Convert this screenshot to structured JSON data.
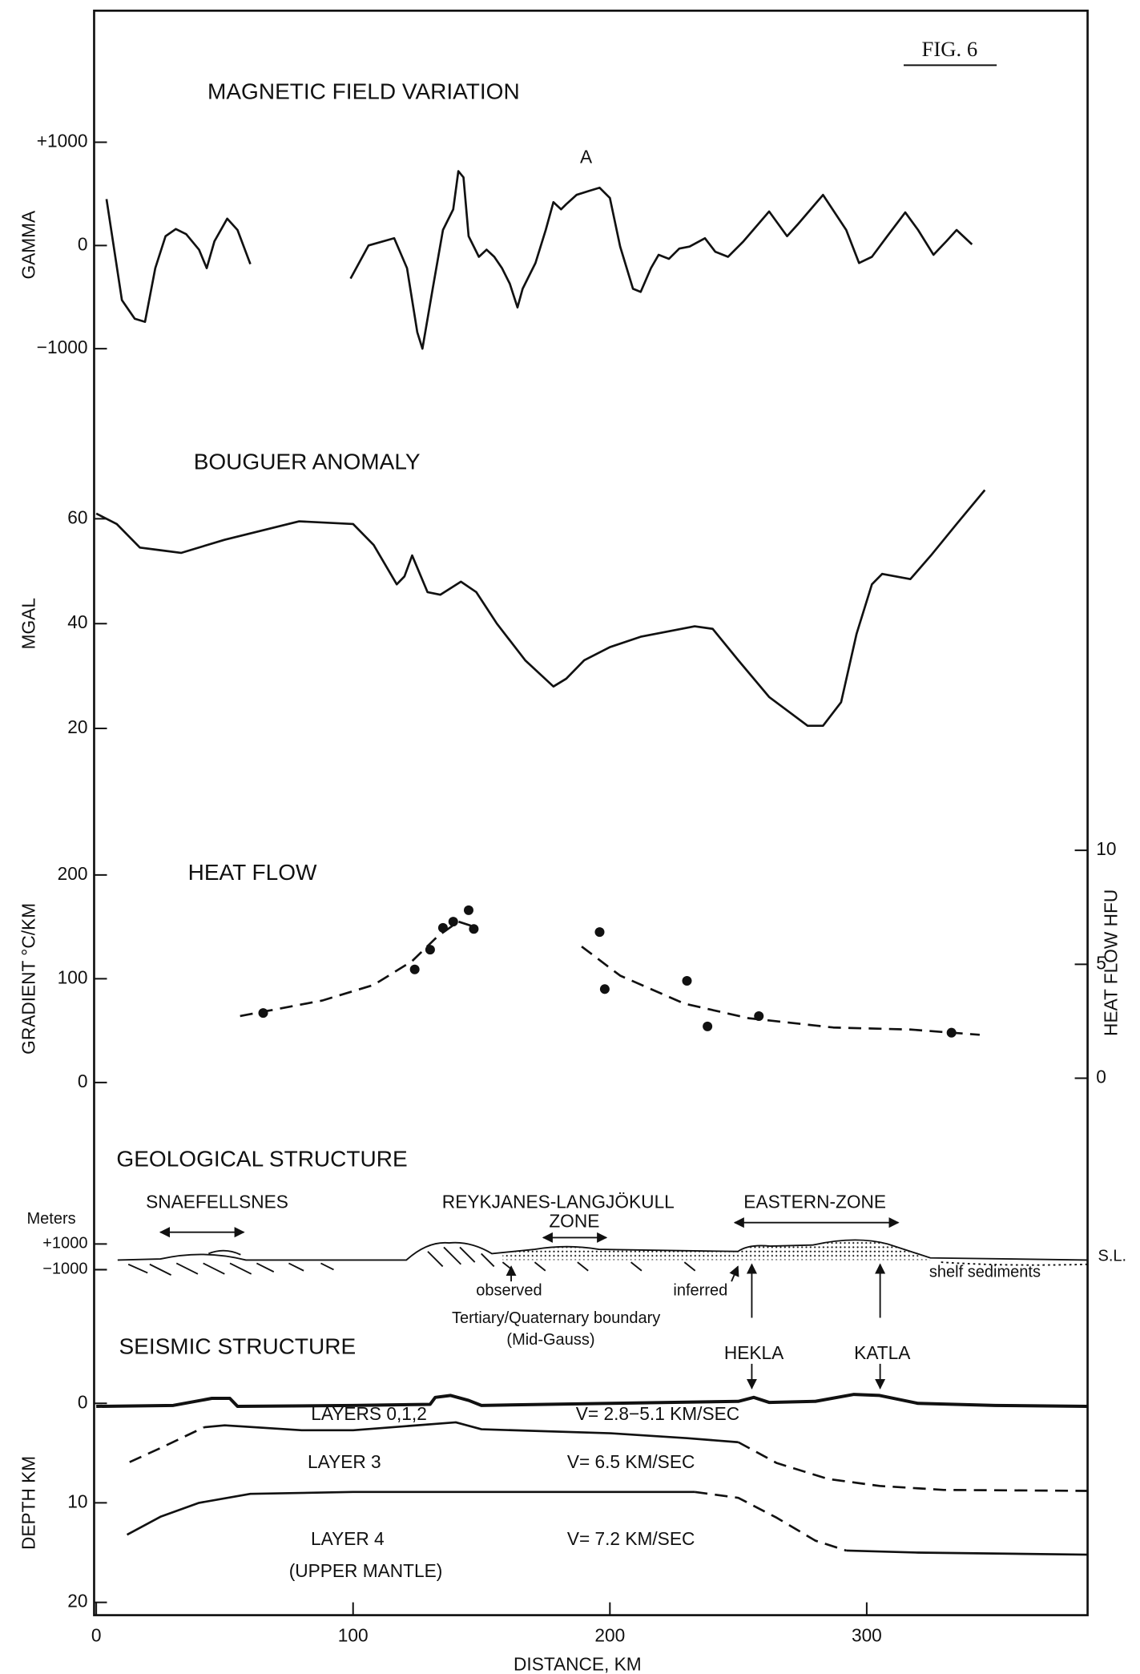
{
  "figure_label": "FIG. 6",
  "chart_data": [
    {
      "type": "line",
      "title": "MAGNETIC FIELD VARIATION",
      "ylabel": "GAMMA",
      "xlim": [
        0,
        386
      ],
      "ylim": [
        -1000,
        1000
      ],
      "yticks": [
        {
          "value": 1000,
          "label": "+1000"
        },
        0,
        {
          "value": -1000,
          "label": "−1000"
        }
      ],
      "annotations": [
        "A"
      ],
      "series": [
        {
          "x": [
            4,
            10,
            15,
            19,
            23,
            27,
            31,
            35,
            40,
            43,
            46,
            51,
            55,
            60
          ],
          "values": [
            450,
            -530,
            -710,
            -740,
            -220,
            90,
            160,
            110,
            -40,
            -220,
            40,
            260,
            150,
            -180
          ]
        },
        {
          "x": [
            99,
            106,
            116,
            121,
            125,
            127,
            131,
            135,
            139,
            141,
            143,
            145,
            149,
            152,
            155,
            158,
            161,
            164,
            166,
            171,
            175,
            178,
            181,
            183,
            187,
            192,
            196,
            200,
            204,
            209,
            212,
            216,
            219,
            223,
            227,
            231,
            237,
            241,
            246,
            252,
            262,
            269,
            273,
            283,
            292,
            297,
            302,
            308,
            315,
            320,
            326,
            331,
            335,
            341
          ],
          "values": [
            -320,
            0,
            70,
            -220,
            -840,
            -1000,
            -420,
            150,
            350,
            720,
            660,
            90,
            -110,
            -40,
            -110,
            -220,
            -370,
            -600,
            -420,
            -170,
            150,
            420,
            350,
            400,
            490,
            530,
            560,
            460,
            -10,
            -420,
            -450,
            -220,
            -90,
            -130,
            -30,
            -10,
            70,
            -60,
            -110,
            40,
            330,
            90,
            200,
            490,
            150,
            -170,
            -110,
            90,
            320,
            150,
            -90,
            40,
            150,
            10
          ]
        }
      ]
    },
    {
      "type": "line",
      "title": "BOUGUER ANOMALY",
      "ylabel": "MGAL",
      "xlim": [
        0,
        386
      ],
      "ylim": [
        20,
        60
      ],
      "yticks": [
        20,
        40,
        60
      ],
      "series": [
        {
          "x": [
            0,
            8,
            17,
            25,
            33,
            50,
            79,
            100,
            108,
            117,
            120,
            123,
            129,
            134,
            142,
            148,
            156,
            167,
            178,
            183,
            190,
            200,
            212,
            233,
            240,
            250,
            262,
            277,
            283,
            290,
            296,
            302,
            306,
            317,
            325,
            335,
            346
          ],
          "values": [
            61,
            59,
            54.5,
            54,
            53.5,
            56,
            59.5,
            59,
            55,
            47.5,
            49,
            53,
            46,
            45.5,
            48,
            46,
            40,
            33,
            28,
            29.5,
            33,
            35.5,
            37.5,
            39.5,
            39,
            33,
            26,
            20.5,
            20.5,
            25,
            38,
            47.5,
            49.5,
            48.5,
            53,
            59,
            65.5
          ]
        }
      ]
    },
    {
      "type": "scatter",
      "title": "HEAT FLOW",
      "ylabel": "GRADIENT °C/KM",
      "y2label": "HEAT FLOW HFU",
      "xlim": [
        0,
        386
      ],
      "ylim": [
        0,
        200
      ],
      "yticks": [
        0,
        100,
        200
      ],
      "y2lim": [
        0,
        10
      ],
      "y2ticks": [
        0,
        5,
        10
      ],
      "points": {
        "x": [
          65,
          124,
          130,
          135,
          139,
          145,
          147,
          196,
          198,
          230,
          238,
          258,
          333
        ],
        "values": [
          67,
          109,
          128,
          149,
          155,
          166,
          148,
          145,
          90,
          98,
          54,
          64,
          48
        ]
      },
      "series": [
        {
          "dashed": true,
          "x": [
            56,
            88,
            108,
            123,
            133,
            141,
            146
          ],
          "values": [
            64,
            79,
            94,
            117,
            141,
            155,
            151
          ]
        },
        {
          "dashed": true,
          "x": [
            189,
            204,
            229,
            254,
            287,
            317,
            344
          ],
          "values": [
            131,
            103,
            76,
            62,
            53,
            51,
            46
          ]
        }
      ]
    },
    {
      "type": "section",
      "title": "GEOLOGICAL STRUCTURE",
      "ylabel": "Meters",
      "sea_level_label": "S.L.",
      "xlim": [
        0,
        386
      ],
      "ylim": [
        -1000,
        1000
      ],
      "yticks": [
        {
          "value": 1000,
          "label": "+1000"
        },
        {
          "value": -1000,
          "label": "−1000"
        }
      ],
      "annotations": [
        "SNAEFELLSNES",
        "REYKJANES-LANGJÖKULL",
        "ZONE",
        "EASTERN-ZONE",
        "observed",
        "inferred",
        "shelf sediments",
        "Tertiary/Quaternary boundary",
        "(Mid-Gauss)"
      ]
    },
    {
      "type": "line",
      "title": "SEISMIC STRUCTURE",
      "ylabel": "DEPTH KM",
      "xlabel": "DISTANCE, KM",
      "xlim": [
        0,
        386
      ],
      "xticks": [
        0,
        100,
        200,
        300
      ],
      "ylim": [
        0,
        20
      ],
      "yticks": [
        0,
        10,
        20
      ],
      "annotations": [
        "HEKLA",
        "KATLA",
        "LAYERS 0,1,2",
        "V= 2.8−5.1 KM/SEC",
        "LAYER 3",
        "V= 6.5 KM/SEC",
        "LAYER 4",
        "(UPPER MANTLE)",
        "V= 7.2 KM/SEC"
      ],
      "series": [
        {
          "width": 3,
          "x": [
            0,
            30,
            45,
            52,
            55,
            100,
            130,
            132,
            138,
            145,
            150,
            200,
            250,
            256,
            262,
            280,
            295,
            305,
            320,
            350,
            386
          ],
          "values": [
            0.3,
            0.2,
            -0.5,
            -0.5,
            0.3,
            0.2,
            0.1,
            -0.6,
            -0.8,
            -0.3,
            0.2,
            0,
            -0.2,
            -0.6,
            -0.1,
            -0.2,
            -0.9,
            -0.8,
            0,
            0.2,
            0.3
          ]
        },
        {
          "dashed": true,
          "x": [
            13,
            25,
            42
          ],
          "values": [
            5.9,
            4.5,
            2.4
          ]
        },
        {
          "x": [
            42,
            50,
            80,
            100,
            140,
            150,
            200,
            230,
            250
          ],
          "values": [
            2.4,
            2.2,
            2.7,
            2.7,
            1.9,
            2.6,
            3.0,
            3.5,
            3.9
          ]
        },
        {
          "dashed": true,
          "x": [
            250,
            265,
            285,
            305,
            330,
            386
          ],
          "values": [
            3.9,
            6.0,
            7.6,
            8.3,
            8.7,
            8.8
          ]
        },
        {
          "x": [
            12,
            25,
            40,
            60,
            100,
            150,
            233
          ],
          "values": [
            13.2,
            11.4,
            10,
            9.1,
            8.9,
            8.9,
            8.9
          ]
        },
        {
          "dashed": true,
          "x": [
            233,
            250,
            265,
            280,
            292
          ],
          "values": [
            8.9,
            9.5,
            11.5,
            13.8,
            14.8
          ]
        },
        {
          "x": [
            292,
            320,
            386
          ],
          "values": [
            14.8,
            15,
            15.2
          ]
        }
      ]
    }
  ]
}
